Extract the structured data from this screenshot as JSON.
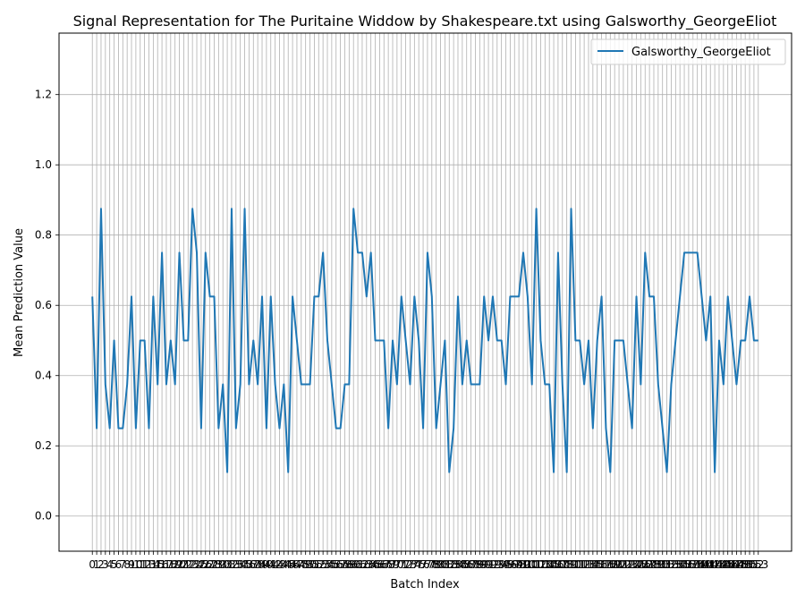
{
  "chart_data": {
    "type": "line",
    "title": "Signal Representation for The Puritaine Widdow by Shakespeare.txt using Galsworthy_GeorgeEliot",
    "xlabel": "Batch Index",
    "ylabel": "Mean Prediction Value",
    "ylim": [
      -0.1,
      1.375
    ],
    "yticks": [
      0.0,
      0.2,
      0.4,
      0.6,
      0.8,
      1.0,
      1.2
    ],
    "grid": true,
    "legend_position": "top-right",
    "colors": {
      "series": "#1f77b4",
      "grid": "#b0b0b0"
    },
    "series": [
      {
        "name": "Galsworthy_GeorgeEliot",
        "x": [
          0,
          1,
          2,
          3,
          4,
          5,
          6,
          7,
          8,
          9,
          10,
          11,
          12,
          13,
          14,
          15,
          16,
          17,
          18,
          19,
          20,
          21,
          22,
          23,
          24,
          25,
          26,
          27,
          28,
          29,
          30,
          31,
          32,
          33,
          34,
          35,
          36,
          37,
          38,
          39,
          40,
          41,
          42,
          43,
          44,
          45,
          46,
          47,
          48,
          49,
          50,
          51,
          52,
          53,
          54,
          55,
          56,
          57,
          58,
          59,
          60,
          61,
          62,
          63,
          64,
          65,
          66,
          67,
          68,
          69,
          70,
          71,
          72,
          73,
          74,
          75,
          76,
          77,
          78,
          79,
          80,
          81,
          82,
          83,
          84,
          85,
          86,
          87,
          88,
          89,
          90,
          91,
          92,
          93,
          94,
          95,
          96,
          97,
          98,
          99,
          100,
          101,
          102,
          103,
          104,
          105,
          106,
          107,
          108,
          109,
          110,
          111,
          112,
          113,
          114,
          115,
          116,
          117,
          118,
          119,
          120,
          121,
          122,
          123,
          124,
          125,
          126,
          127,
          128,
          129,
          130,
          131,
          132,
          133,
          134,
          135,
          136,
          137,
          138,
          139,
          140,
          141,
          142,
          143,
          144,
          145,
          146,
          147,
          148,
          149,
          150,
          151,
          152,
          153
        ],
        "values": [
          0.625,
          0.25,
          0.875,
          0.375,
          0.25,
          0.5,
          0.25,
          0.25,
          0.375,
          0.625,
          0.25,
          0.5,
          0.5,
          0.25,
          0.625,
          0.375,
          0.75,
          0.375,
          0.5,
          0.375,
          0.75,
          0.5,
          0.5,
          0.875,
          0.75,
          0.25,
          0.75,
          0.625,
          0.625,
          0.25,
          0.375,
          0.125,
          0.875,
          0.25,
          0.375,
          0.875,
          0.375,
          0.5,
          0.375,
          0.625,
          0.25,
          0.625,
          0.375,
          0.25,
          0.375,
          0.125,
          0.625,
          0.5,
          0.375,
          0.375,
          0.375,
          0.625,
          0.625,
          0.75,
          0.5,
          0.375,
          0.25,
          0.25,
          0.375,
          0.375,
          0.875,
          0.75,
          0.75,
          0.625,
          0.75,
          0.5,
          0.5,
          0.5,
          0.25,
          0.5,
          0.375,
          0.625,
          0.5,
          0.375,
          0.625,
          0.5,
          0.25,
          0.75,
          0.625,
          0.25,
          0.375,
          0.5,
          0.125,
          0.25,
          0.625,
          0.375,
          0.5,
          0.375,
          0.375,
          0.375,
          0.625,
          0.5,
          0.625,
          0.5,
          0.5,
          0.375,
          0.625,
          0.625,
          0.625,
          0.75,
          0.625,
          0.375,
          0.875,
          0.5,
          0.375,
          0.375,
          0.125,
          0.75,
          0.375,
          0.125,
          0.875,
          0.5,
          0.5,
          0.375,
          0.5,
          0.25,
          0.5,
          0.625,
          0.25,
          0.125,
          0.5,
          0.5,
          0.5,
          0.375,
          0.25,
          0.625,
          0.375,
          0.75,
          0.625,
          0.625,
          0.375,
          0.25,
          0.125,
          0.375,
          0.5,
          0.625,
          0.75,
          0.75,
          0.75,
          0.75,
          0.625,
          0.5,
          0.625,
          0.125,
          0.5,
          0.375,
          0.625,
          0.5,
          0.375,
          0.5,
          0.5,
          0.625,
          0.5,
          0.5
        ]
      }
    ]
  }
}
